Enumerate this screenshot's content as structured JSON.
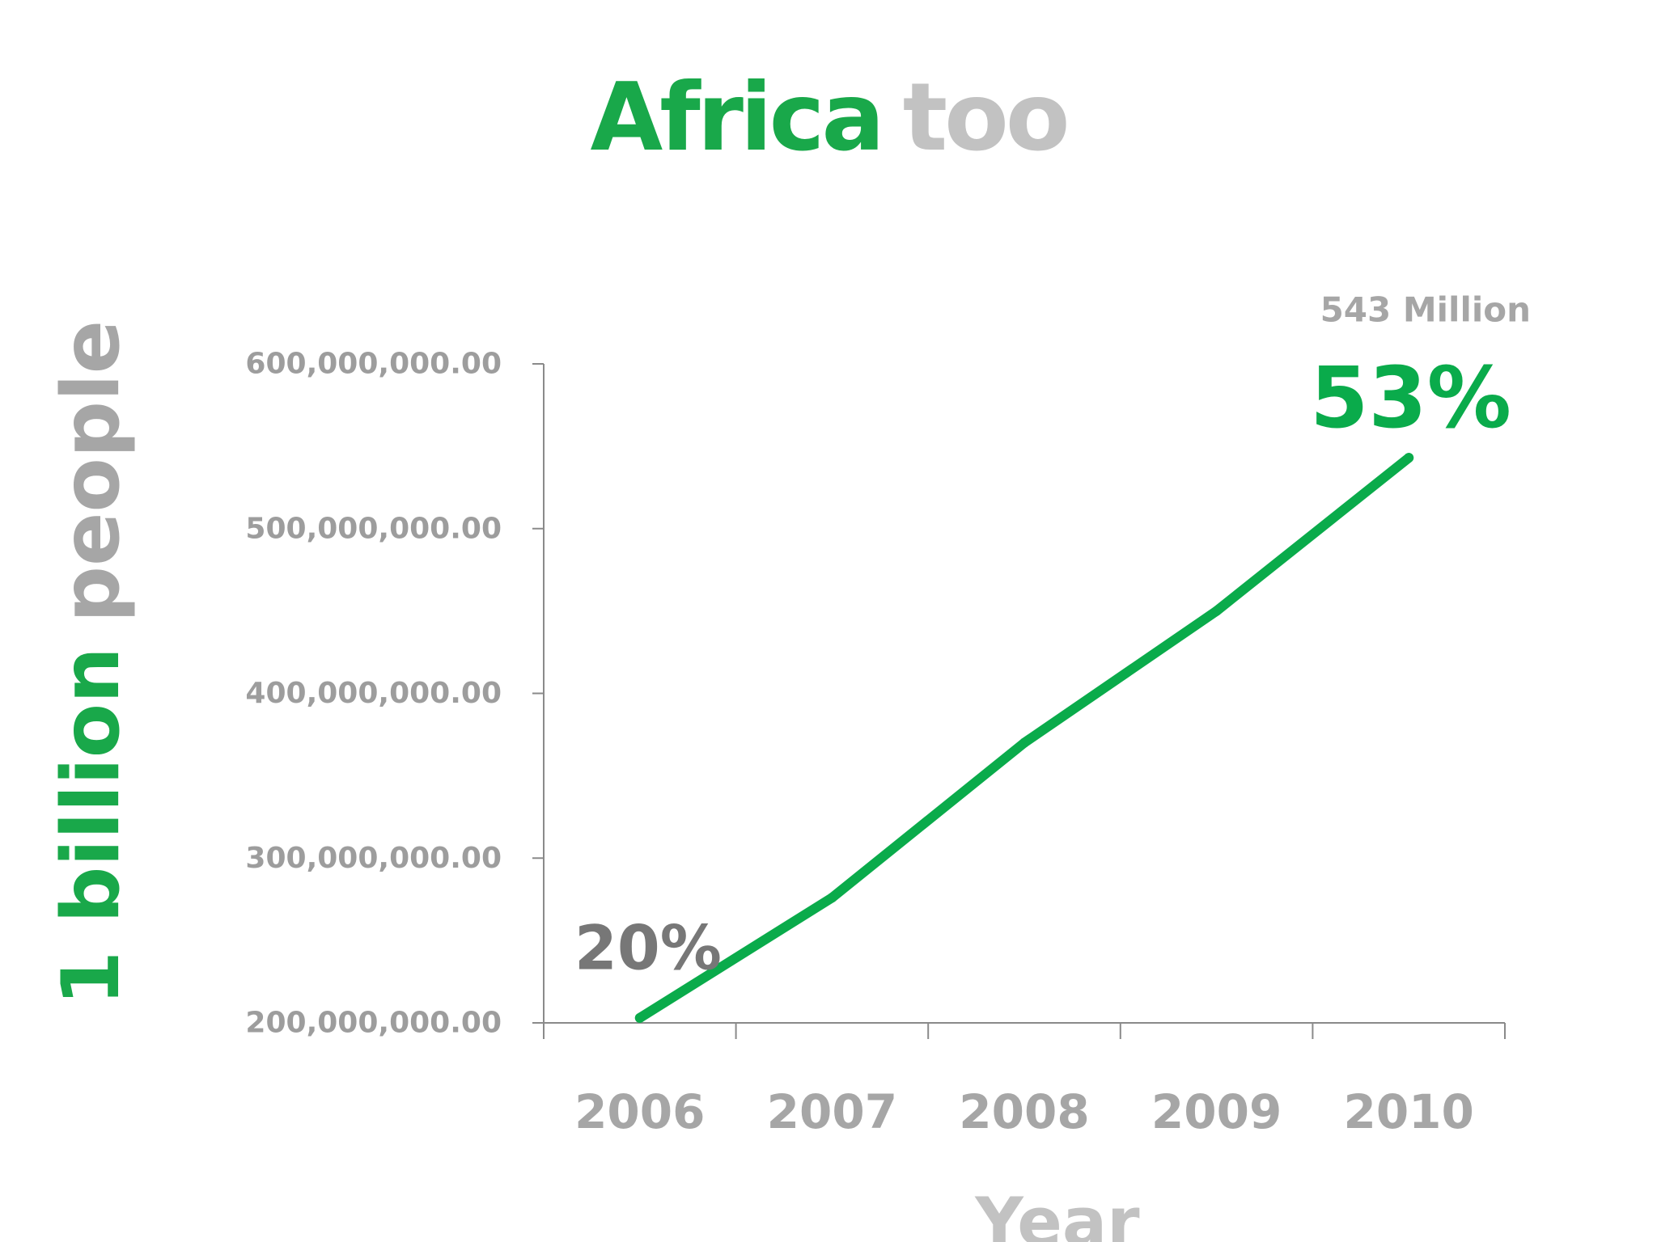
{
  "title": {
    "primary": "Africa",
    "secondary": "too"
  },
  "y_axis_title": {
    "primary": "1 billion",
    "secondary": "people"
  },
  "colors": {
    "accent": "#0aab4b",
    "grey_text": "#a6a6a6",
    "dark_grey": "#777777",
    "axis": "#8a8a8a"
  },
  "chart_data": {
    "type": "line",
    "categories": [
      "2006",
      "2007",
      "2008",
      "2009",
      "2010"
    ],
    "series": [
      {
        "values": [
          203000000,
          276000000,
          370000000,
          450000000,
          543000000
        ]
      }
    ],
    "xlabel": "Year",
    "ylim": [
      200000000,
      600000000
    ],
    "yticks": [
      200000000,
      300000000,
      400000000,
      500000000,
      600000000
    ],
    "ytick_labels": [
      "200,000,000.00",
      "300,000,000.00",
      "400,000,000.00",
      "500,000,000.00",
      "600,000,000.00"
    ],
    "grid": false,
    "legend": "none",
    "annotations": {
      "start_percent": "20%",
      "end_percent": "53%",
      "end_value": "543 Million"
    }
  }
}
